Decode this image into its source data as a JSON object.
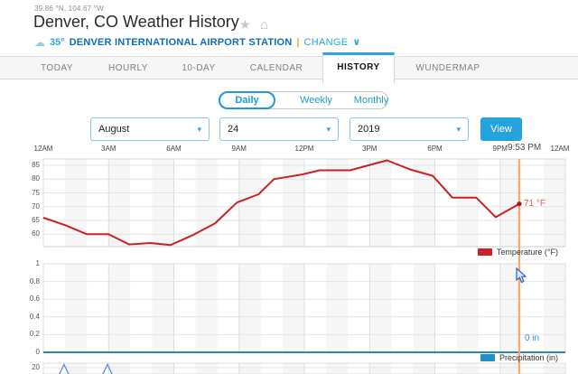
{
  "header": {
    "coordinates": "39.86 °N, 104.67 °W",
    "title": "Denver, CO Weather History",
    "station": {
      "temp": "35°",
      "name": "DENVER INTERNATIONAL AIRPORT STATION",
      "separator": "|",
      "change_label": "CHANGE"
    }
  },
  "icons": {
    "favorite_star": "★",
    "home": "⌂",
    "station": "☁",
    "chevron_down": "∨",
    "select_caret": "▾"
  },
  "tabs": [
    {
      "label": "TODAY",
      "active": false
    },
    {
      "label": "HOURLY",
      "active": false
    },
    {
      "label": "10-DAY",
      "active": false
    },
    {
      "label": "CALENDAR",
      "active": false
    },
    {
      "label": "HISTORY",
      "active": true
    },
    {
      "label": "WUNDERMAP",
      "active": false
    }
  ],
  "subtabs": [
    {
      "label": "Daily",
      "active": true
    },
    {
      "label": "Weekly",
      "active": false
    },
    {
      "label": "Monthly",
      "active": false
    }
  ],
  "date_picker": {
    "month": "August",
    "day": "24",
    "year": "2019",
    "view_label": "View"
  },
  "now": {
    "time_label": "9:53 PM",
    "hours": 21.88,
    "temp_label": "71 °F",
    "precip_label": "0 in"
  },
  "chart_data": [
    {
      "id": "temperature",
      "type": "line",
      "legend": "Temperature (°F)",
      "color": "#cc2025",
      "marker_color": "#a51a1a",
      "x_ticks": [
        "12AM",
        "3AM",
        "6AM",
        "9AM",
        "12PM",
        "3PM",
        "6PM",
        "9PM",
        "12AM"
      ],
      "x_range_hours": [
        0,
        24
      ],
      "y_ticks": [
        85,
        80,
        75,
        70,
        65,
        60
      ],
      "ylim": [
        55.5,
        87.3
      ],
      "grid": true,
      "legend_position": "bottom-right",
      "points": [
        [
          0,
          66
        ],
        [
          1,
          63.3
        ],
        [
          2,
          60
        ],
        [
          3,
          60
        ],
        [
          3.95,
          56.3
        ],
        [
          4.9,
          56.8
        ],
        [
          5.85,
          56.1
        ],
        [
          6.9,
          59.8
        ],
        [
          7.9,
          64
        ],
        [
          8.9,
          71.5
        ],
        [
          9.9,
          74.5
        ],
        [
          10.6,
          80
        ],
        [
          11.9,
          81.7
        ],
        [
          12.7,
          83.2
        ],
        [
          14.1,
          83.2
        ],
        [
          15.8,
          86.8
        ],
        [
          16.9,
          83.4
        ],
        [
          17.9,
          81.2
        ],
        [
          18.8,
          73.3
        ],
        [
          19.9,
          73.3
        ],
        [
          20.8,
          66.2
        ],
        [
          21.88,
          71
        ]
      ],
      "now_value": 71
    },
    {
      "id": "precipitation",
      "type": "line",
      "legend": "Precipitation (in)",
      "color": "#2e86b5",
      "swatch_color": "#1f8fc7",
      "y_ticks": [
        1,
        0.8,
        0.6,
        0.4,
        0.2,
        0
      ],
      "ylim": [
        0,
        1
      ],
      "grid": true,
      "legend_position": "bottom-right",
      "points": [
        [
          0,
          0
        ],
        [
          24,
          0
        ]
      ],
      "now_value": 0
    },
    {
      "id": "wind",
      "type": "line",
      "partial": true,
      "y_ticks": [
        20
      ],
      "color": "#6c8fd8",
      "spike_hours": [
        0.95,
        2.95
      ]
    }
  ],
  "colors": {
    "now_line": "#f8a766",
    "stripe": "#f6f6f6",
    "gridline": "#e4e4e4",
    "plot_border": "#dcdcdc"
  }
}
